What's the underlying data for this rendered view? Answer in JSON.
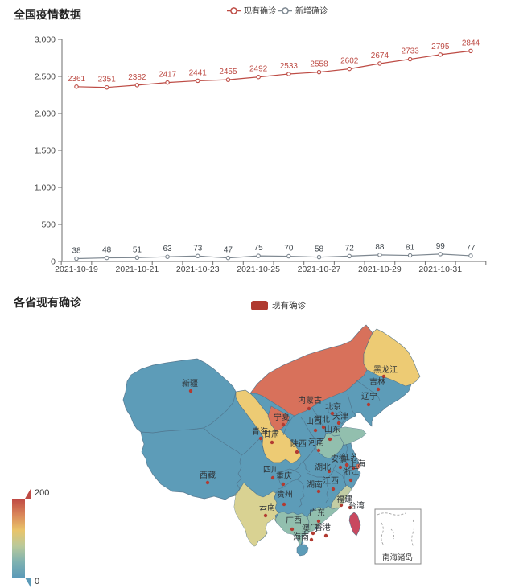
{
  "chart_data": [
    {
      "type": "line",
      "title": "全国疫情数据",
      "x": [
        "2021-10-19",
        "2021-10-20",
        "2021-10-21",
        "2021-10-22",
        "2021-10-23",
        "2021-10-24",
        "2021-10-25",
        "2021-10-26",
        "2021-10-27",
        "2021-10-28",
        "2021-10-29",
        "2021-10-30",
        "2021-10-31",
        "2021-11-01"
      ],
      "x_axis_labels_shown": [
        "2021-10-19",
        "2021-10-21",
        "2021-10-23",
        "2021-10-25",
        "2021-10-27",
        "2021-10-29",
        "2021-10-31"
      ],
      "series": [
        {
          "name": "现有确诊",
          "color": "#bd4b44",
          "values": [
            2361,
            2351,
            2382,
            2417,
            2441,
            2455,
            2492,
            2533,
            2558,
            2602,
            2674,
            2733,
            2795,
            2844
          ]
        },
        {
          "name": "新增确诊",
          "color": "#7d8790",
          "label_color": "#3f464c",
          "values": [
            38,
            48,
            51,
            63,
            73,
            47,
            75,
            70,
            58,
            72,
            88,
            81,
            99,
            77
          ]
        }
      ],
      "ylim": [
        0,
        3000
      ],
      "y_ticks": [
        "0",
        "500",
        "1,000",
        "1,500",
        "2,000",
        "2,500",
        "3,000"
      ],
      "grid": false,
      "legend_position": "top"
    },
    {
      "type": "map",
      "title": "各省现有确诊",
      "legend": "现有确诊",
      "legend_color": "#b03a30",
      "visual_map": {
        "min_label": "0",
        "max_label": "200",
        "colors_top_to_bottom": [
          "#bf4a44",
          "#d98559",
          "#e9c46a",
          "#b9c99a",
          "#7fb2b0",
          "#5b9ab8"
        ]
      },
      "inset_label": "南海诸岛",
      "regions": [
        {
          "name": "新疆",
          "color": "#5d9cb8"
        },
        {
          "name": "西藏",
          "color": "#5d9cb8"
        },
        {
          "name": "青海",
          "color": "#5d9cb8"
        },
        {
          "name": "甘肃",
          "color": "#edcb74"
        },
        {
          "name": "宁夏",
          "color": "#d8715b"
        },
        {
          "name": "内蒙古",
          "color": "#d8715b"
        },
        {
          "name": "黑龙江",
          "color": "#edcb74"
        },
        {
          "name": "吉林",
          "color": "#5d9cb8"
        },
        {
          "name": "辽宁",
          "color": "#5d9cb8"
        },
        {
          "name": "北京",
          "color": "#5d9cb8"
        },
        {
          "name": "天津",
          "color": "#5d9cb8"
        },
        {
          "name": "河北",
          "color": "#5d9cb8"
        },
        {
          "name": "山西",
          "color": "#5d9cb8"
        },
        {
          "name": "山东",
          "color": "#92bfae"
        },
        {
          "name": "河南",
          "color": "#92bfae"
        },
        {
          "name": "陕西",
          "color": "#5d9cb8"
        },
        {
          "name": "安徽",
          "color": "#5d9cb8"
        },
        {
          "name": "江苏",
          "color": "#5d9cb8"
        },
        {
          "name": "上海",
          "color": "#d8715b"
        },
        {
          "name": "浙江",
          "color": "#5d9cb8"
        },
        {
          "name": "湖北",
          "color": "#5d9cb8"
        },
        {
          "name": "四川",
          "color": "#5d9cb8"
        },
        {
          "name": "重庆",
          "color": "#5d9cb8"
        },
        {
          "name": "湖南",
          "color": "#5d9cb8"
        },
        {
          "name": "江西",
          "color": "#5d9cb8"
        },
        {
          "name": "贵州",
          "color": "#5d9cb8"
        },
        {
          "name": "福建",
          "color": "#c3cda4"
        },
        {
          "name": "台湾",
          "color": "#c9485f"
        },
        {
          "name": "云南",
          "color": "#d9d292"
        },
        {
          "name": "广西",
          "color": "#92bfae"
        },
        {
          "name": "广东",
          "color": "#92bfae"
        },
        {
          "name": "澳门",
          "color": null
        },
        {
          "name": "香港",
          "color": null
        },
        {
          "name": "海南",
          "color": "#5d9cb8"
        }
      ]
    }
  ]
}
